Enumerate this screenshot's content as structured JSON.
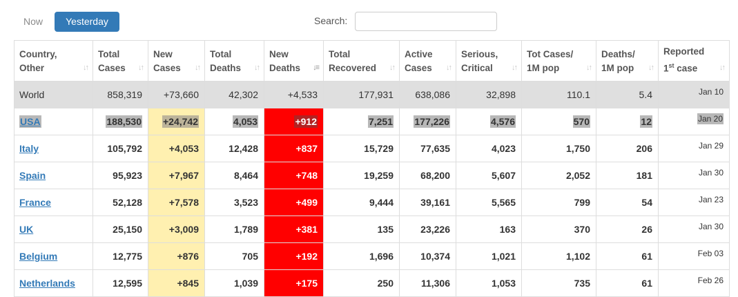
{
  "tabs": {
    "now": "Now",
    "yesterday": "Yesterday"
  },
  "search": {
    "label": "Search:",
    "value": "",
    "placeholder": ""
  },
  "colors": {
    "accent": "#337ab7",
    "new_cases_bg": "#fff0b0",
    "new_deaths_bg": "#ff0000",
    "world_row_bg": "#dfdfdf"
  },
  "table": {
    "headers": {
      "country": [
        "Country,",
        "Other"
      ],
      "total_cases": [
        "Total",
        "Cases"
      ],
      "new_cases": [
        "New",
        "Cases"
      ],
      "total_deaths": [
        "Total",
        "Deaths"
      ],
      "new_deaths": [
        "New",
        "Deaths"
      ],
      "total_recovered": [
        "Total",
        "Recovered"
      ],
      "active_cases": [
        "Active",
        "Cases"
      ],
      "serious_critical": [
        "Serious,",
        "Critical"
      ],
      "tot_cases_1m": [
        "Tot Cases/",
        "1M pop"
      ],
      "deaths_1m": [
        "Deaths/",
        "1M pop"
      ],
      "reported": [
        "Reported",
        "1",
        "st",
        " case"
      ]
    },
    "world": {
      "country": "World",
      "total_cases": "858,319",
      "new_cases": "+73,660",
      "total_deaths": "42,302",
      "new_deaths": "+4,533",
      "total_recovered": "177,931",
      "active_cases": "638,086",
      "serious_critical": "32,898",
      "tot_cases_1m": "110.1",
      "deaths_1m": "5.4",
      "reported": "Jan 10"
    },
    "rows": [
      {
        "country": "USA",
        "total_cases": "188,530",
        "new_cases": "+24,742",
        "total_deaths": "4,053",
        "new_deaths": "+912",
        "total_recovered": "7,251",
        "active_cases": "177,226",
        "serious_critical": "4,576",
        "tot_cases_1m": "570",
        "deaths_1m": "12",
        "reported": "Jan 20"
      },
      {
        "country": "Italy",
        "total_cases": "105,792",
        "new_cases": "+4,053",
        "total_deaths": "12,428",
        "new_deaths": "+837",
        "total_recovered": "15,729",
        "active_cases": "77,635",
        "serious_critical": "4,023",
        "tot_cases_1m": "1,750",
        "deaths_1m": "206",
        "reported": "Jan 29"
      },
      {
        "country": "Spain",
        "total_cases": "95,923",
        "new_cases": "+7,967",
        "total_deaths": "8,464",
        "new_deaths": "+748",
        "total_recovered": "19,259",
        "active_cases": "68,200",
        "serious_critical": "5,607",
        "tot_cases_1m": "2,052",
        "deaths_1m": "181",
        "reported": "Jan 30"
      },
      {
        "country": "France",
        "total_cases": "52,128",
        "new_cases": "+7,578",
        "total_deaths": "3,523",
        "new_deaths": "+499",
        "total_recovered": "9,444",
        "active_cases": "39,161",
        "serious_critical": "5,565",
        "tot_cases_1m": "799",
        "deaths_1m": "54",
        "reported": "Jan 23"
      },
      {
        "country": "UK",
        "total_cases": "25,150",
        "new_cases": "+3,009",
        "total_deaths": "1,789",
        "new_deaths": "+381",
        "total_recovered": "135",
        "active_cases": "23,226",
        "serious_critical": "163",
        "tot_cases_1m": "370",
        "deaths_1m": "26",
        "reported": "Jan 30"
      },
      {
        "country": "Belgium",
        "total_cases": "12,775",
        "new_cases": "+876",
        "total_deaths": "705",
        "new_deaths": "+192",
        "total_recovered": "1,696",
        "active_cases": "10,374",
        "serious_critical": "1,021",
        "tot_cases_1m": "1,102",
        "deaths_1m": "61",
        "reported": "Feb 03"
      },
      {
        "country": "Netherlands",
        "total_cases": "12,595",
        "new_cases": "+845",
        "total_deaths": "1,039",
        "new_deaths": "+175",
        "total_recovered": "250",
        "active_cases": "11,306",
        "serious_critical": "1,053",
        "tot_cases_1m": "735",
        "deaths_1m": "61",
        "reported": "Feb 26"
      }
    ]
  }
}
